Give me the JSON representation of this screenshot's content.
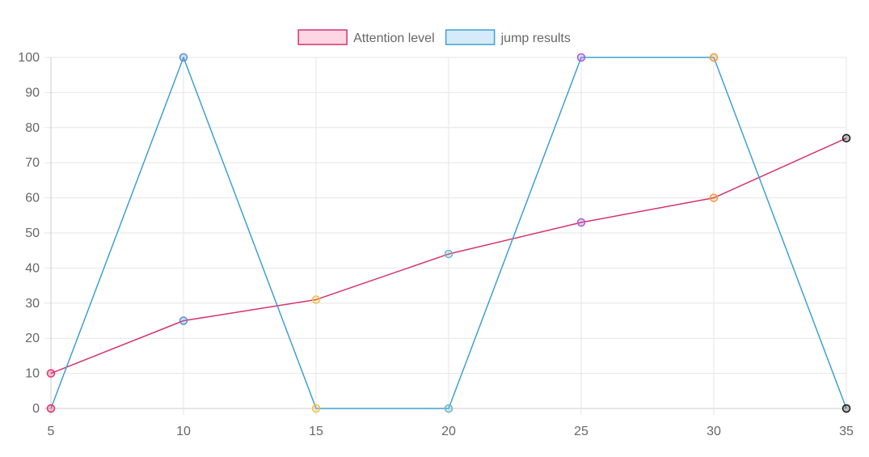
{
  "chart_data": {
    "type": "line",
    "title": "",
    "xlabel": "",
    "ylabel": "",
    "x": [
      5,
      10,
      15,
      20,
      25,
      30,
      35
    ],
    "xlim": [
      5,
      35
    ],
    "ylim": [
      0,
      100
    ],
    "y_ticks": [
      0,
      10,
      20,
      30,
      40,
      50,
      60,
      70,
      80,
      90,
      100
    ],
    "grid": true,
    "legend_position": "top",
    "point_colors": [
      "#e0306f",
      "#5a8fd8",
      "#f2c14e",
      "#6ab6c8",
      "#a45ce0",
      "#f29a3a",
      "#111111"
    ],
    "series": [
      {
        "name": "Attention level",
        "values": [
          10,
          25,
          31,
          44,
          53,
          60,
          77
        ],
        "line_color": "#d6336c",
        "fill_color": "#ffd6e3"
      },
      {
        "name": "jump results",
        "values": [
          0,
          100,
          0,
          0,
          100,
          100,
          0
        ],
        "line_color": "#3fa0d0",
        "fill_color": "#d6ebf9"
      }
    ]
  }
}
